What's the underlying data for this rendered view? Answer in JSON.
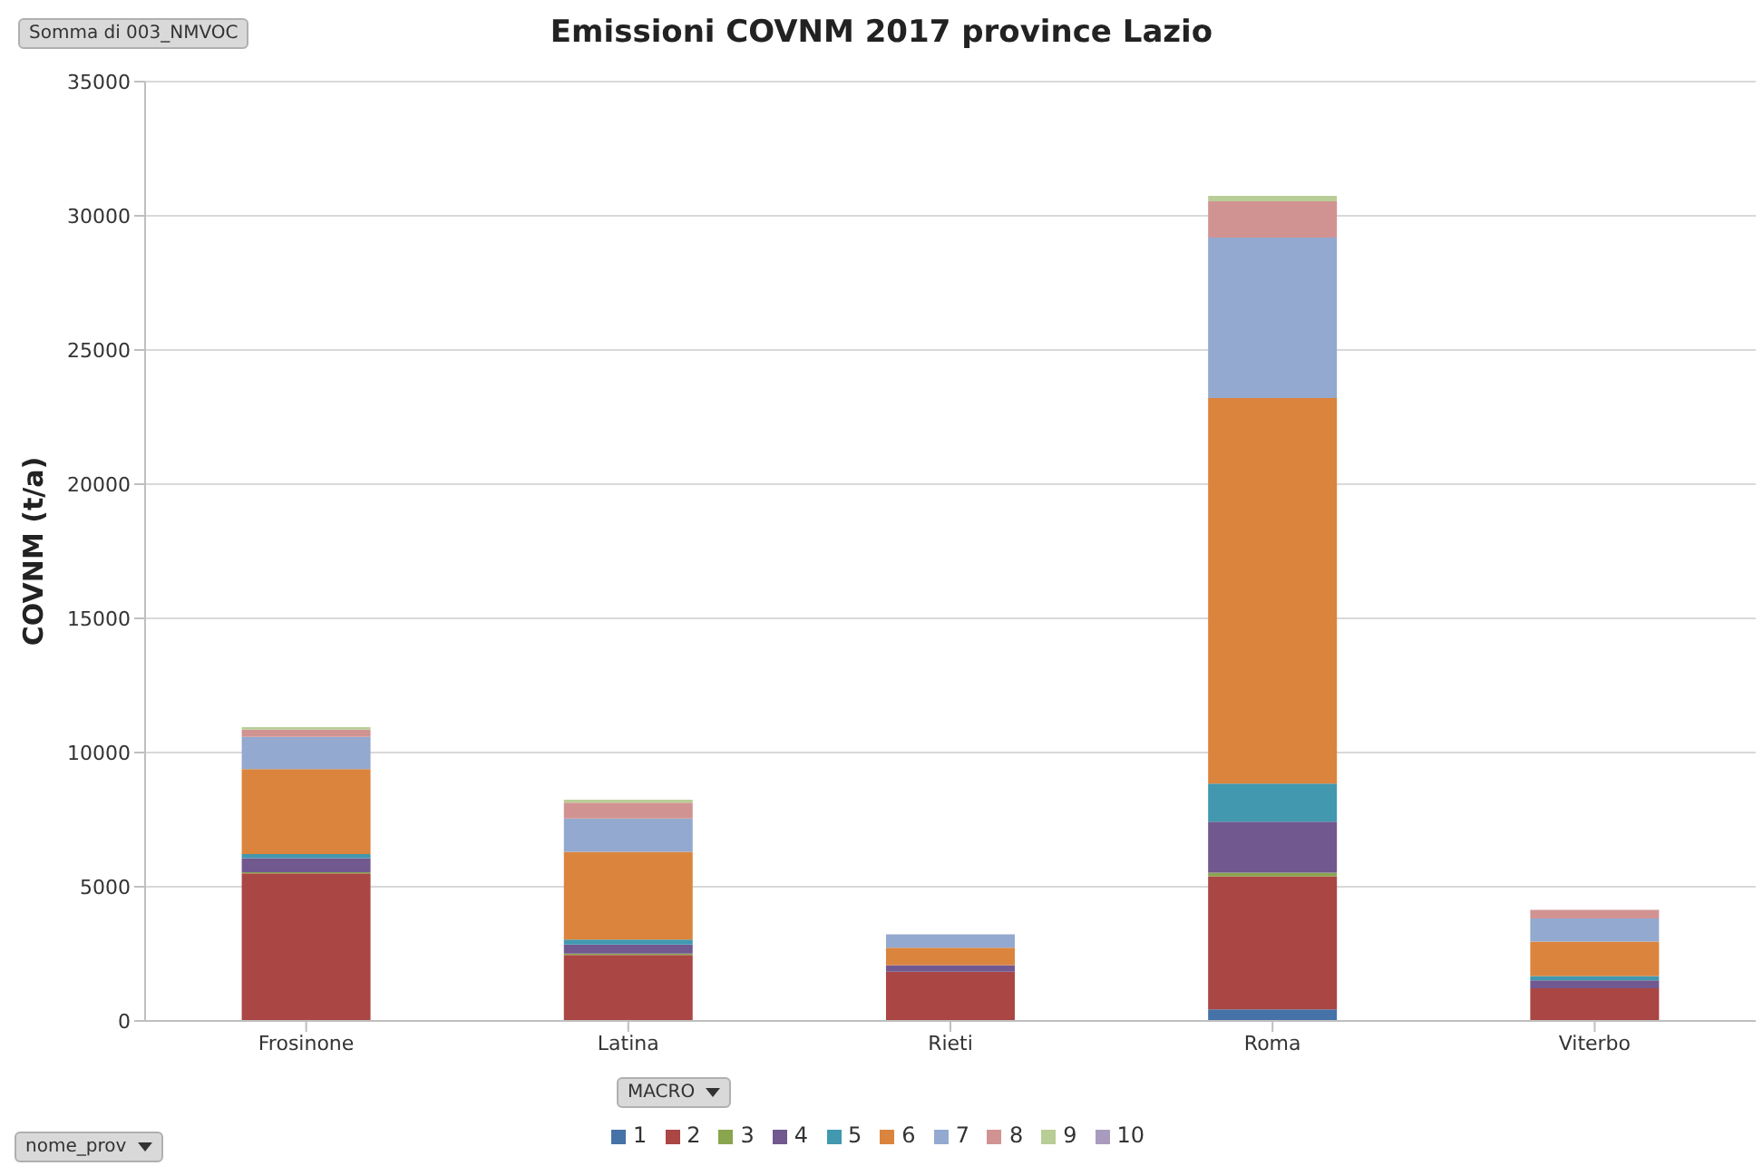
{
  "chart_data": {
    "type": "bar",
    "title": "Emissioni COVNM 2017 province Lazio",
    "ylabel": "COVNM (t/a)",
    "categories": [
      "Frosinone",
      "Latina",
      "Rieti",
      "Roma",
      "Viterbo"
    ],
    "stacked": true,
    "ylim": [
      0,
      35000
    ],
    "yticks": [
      0,
      5000,
      10000,
      15000,
      20000,
      25000,
      30000,
      35000
    ],
    "grid": "y",
    "legend": "bottom",
    "series": [
      {
        "name": "1",
        "color": "#4572a7",
        "values": [
          null,
          0,
          0,
          430,
          0
        ]
      },
      {
        "name": "2",
        "color": "#aa4643",
        "values": [
          5500,
          2460,
          1830,
          4960,
          1220
        ]
      },
      {
        "name": "3",
        "color": "#89a54e",
        "values": [
          40,
          50,
          0,
          130,
          0
        ]
      },
      {
        "name": "4",
        "color": "#71588f",
        "values": [
          520,
          340,
          250,
          1900,
          290
        ]
      },
      {
        "name": "5",
        "color": "#4198af",
        "values": [
          160,
          180,
          0,
          1420,
          160
        ]
      },
      {
        "name": "6",
        "color": "#db843d",
        "values": [
          3160,
          3270,
          650,
          14370,
          1290
        ]
      },
      {
        "name": "7",
        "color": "#93a9cf",
        "values": [
          1200,
          1240,
          500,
          5980,
          860
        ]
      },
      {
        "name": "8",
        "color": "#d19392",
        "values": [
          270,
          590,
          0,
          1350,
          320
        ]
      },
      {
        "name": "9",
        "color": "#b9cd96",
        "values": [
          100,
          110,
          0,
          200,
          0
        ]
      },
      {
        "name": "10",
        "color": "#a99bbd",
        "values": [
          0,
          0,
          0,
          0,
          0
        ]
      }
    ],
    "annotations": [
      "Somma di 003_NMVOC",
      "MACRO",
      "nome_prov"
    ]
  }
}
